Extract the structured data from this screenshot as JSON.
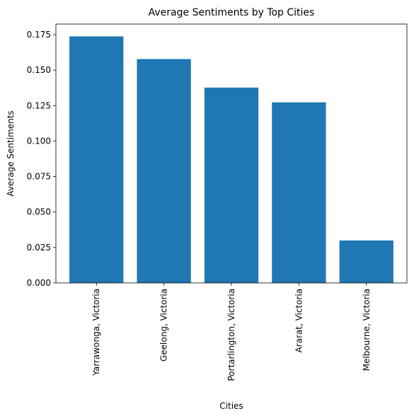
{
  "chart_data": {
    "type": "bar",
    "title": "Average Sentiments by Top Cities",
    "xlabel": "Cities",
    "ylabel": "Average Sentiments",
    "categories": [
      "Yarrawonga, Victoria",
      "Geelong, Victoria",
      "Portarlington, Victoria",
      "Ararat, Victoria",
      "Melbourne, Victoria"
    ],
    "values": [
      0.1738,
      0.1578,
      0.1377,
      0.1273,
      0.0299
    ],
    "ylim": [
      0,
      0.1825
    ],
    "yticks": [
      0.0,
      0.025,
      0.05,
      0.075,
      0.1,
      0.125,
      0.15,
      0.175
    ],
    "ytick_labels": [
      "0.000",
      "0.025",
      "0.050",
      "0.075",
      "0.100",
      "0.125",
      "0.150",
      "0.175"
    ],
    "grid": false,
    "bar_color": "#1f77b4"
  }
}
